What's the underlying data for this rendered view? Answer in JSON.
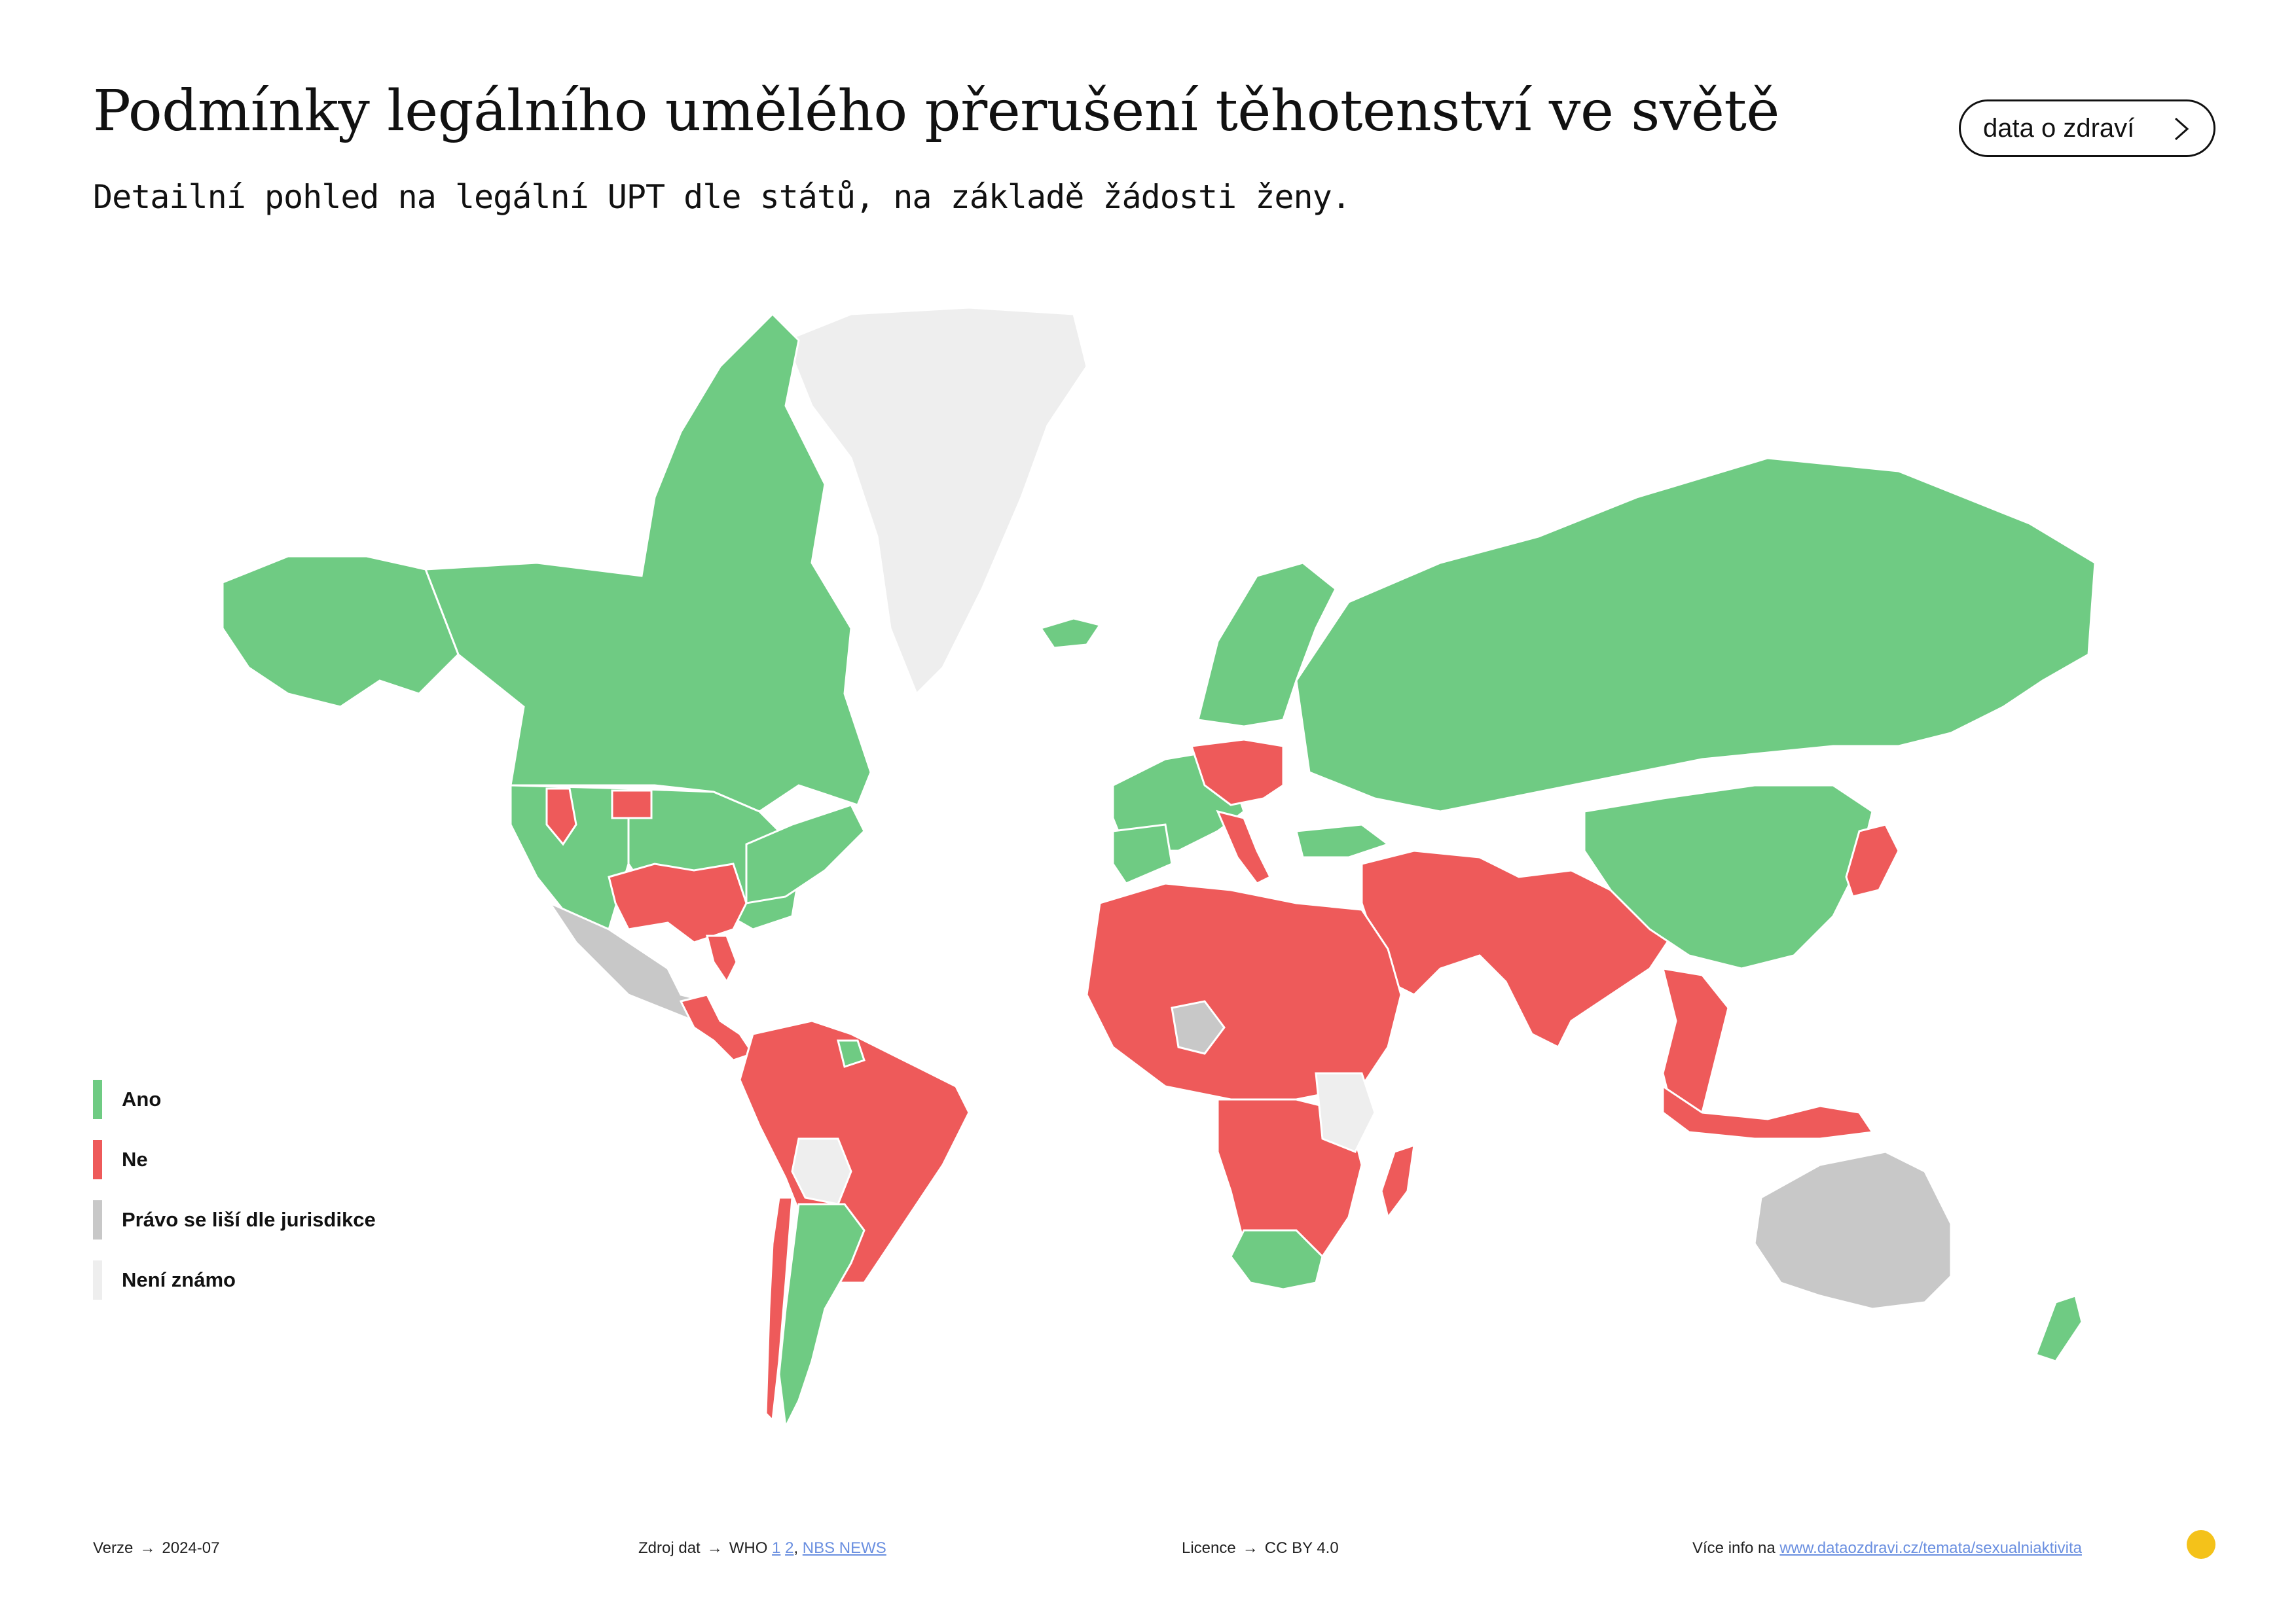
{
  "header": {
    "title": "Podmínky legálního umělého přerušení těhotenství ve světě",
    "subtitle": "Detailní pohled na legální UPT dle států, na základě žádosti ženy.",
    "nav_button_label": "data o zdraví",
    "nav_button_icon": "chevron-right-icon"
  },
  "colors": {
    "ano": "#6fcb83",
    "ne": "#ee5a5a",
    "pravo": "#c8c8c8",
    "nezname": "#eeeeee"
  },
  "legend": {
    "items": [
      {
        "label": "Ano",
        "category": "ano"
      },
      {
        "label": "Ne",
        "category": "ne"
      },
      {
        "label": "Právo se liší dle jurisdikce",
        "category": "pravo"
      },
      {
        "label": "Není známo",
        "category": "nezname"
      }
    ]
  },
  "footer": {
    "version_label": "Verze",
    "version_value": "2024-07",
    "source_label": "Zdroj dat",
    "source_value": "WHO",
    "source_link_1": "1",
    "source_link_2": "2",
    "source_link_3": "NBS NEWS",
    "license_label": "Licence",
    "license_value": "CC BY 4.0",
    "more_info_label": "Více info na",
    "more_info_link": "www.dataozdravi.cz/temata/sexualniaktivita",
    "logo_icon": "dataozdravi-logo-icon"
  }
}
